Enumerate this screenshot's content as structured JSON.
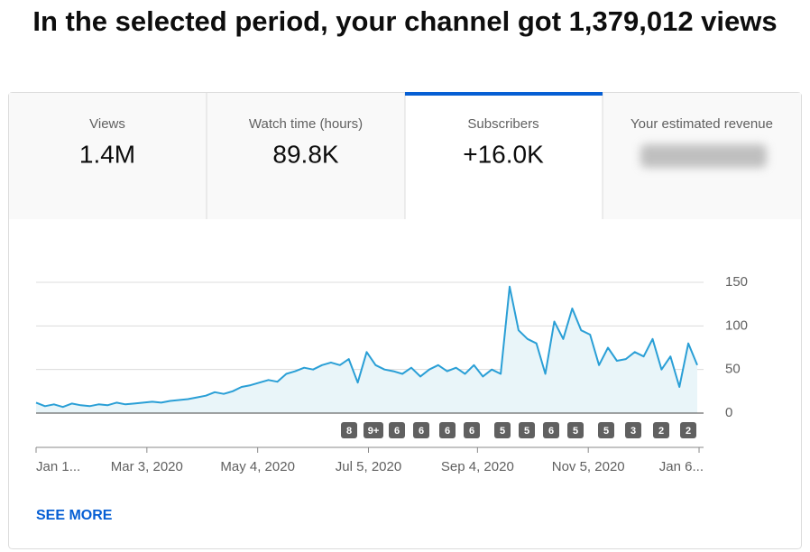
{
  "headline": "In the selected period, your channel got 1,379,012 views",
  "tabs": [
    {
      "label": "Views",
      "value": "1.4M"
    },
    {
      "label": "Watch time (hours)",
      "value": "89.8K"
    },
    {
      "label": "Subscribers",
      "value": "+16.0K"
    },
    {
      "label": "Your estimated revenue"
    }
  ],
  "chart_data": {
    "type": "line",
    "color": "#2a9fd6",
    "fill": "#e9f5f9",
    "grid": true,
    "x": [
      "2020-01-01",
      "2020-01-06",
      "2020-01-11",
      "2020-01-16",
      "2020-01-21",
      "2020-01-26",
      "2020-01-31",
      "2020-02-05",
      "2020-02-10",
      "2020-02-15",
      "2020-02-20",
      "2020-02-25",
      "2020-03-01",
      "2020-03-06",
      "2020-03-11",
      "2020-03-16",
      "2020-03-21",
      "2020-03-26",
      "2020-03-31",
      "2020-04-05",
      "2020-04-10",
      "2020-04-15",
      "2020-04-20",
      "2020-04-25",
      "2020-04-30",
      "2020-05-05",
      "2020-05-10",
      "2020-05-15",
      "2020-05-20",
      "2020-05-25",
      "2020-05-30",
      "2020-06-04",
      "2020-06-09",
      "2020-06-14",
      "2020-06-19",
      "2020-06-24",
      "2020-06-29",
      "2020-07-04",
      "2020-07-09",
      "2020-07-14",
      "2020-07-19",
      "2020-07-24",
      "2020-07-29",
      "2020-08-03",
      "2020-08-08",
      "2020-08-13",
      "2020-08-18",
      "2020-08-23",
      "2020-08-28",
      "2020-09-02",
      "2020-09-07",
      "2020-09-12",
      "2020-09-17",
      "2020-09-22",
      "2020-09-27",
      "2020-10-02",
      "2020-10-07",
      "2020-10-12",
      "2020-10-17",
      "2020-10-22",
      "2020-10-27",
      "2020-11-01",
      "2020-11-06",
      "2020-11-11",
      "2020-11-16",
      "2020-11-21",
      "2020-11-26",
      "2020-12-01",
      "2020-12-06",
      "2020-12-11",
      "2020-12-16",
      "2020-12-21",
      "2020-12-26",
      "2020-12-31",
      "2021-01-05"
    ],
    "values": [
      12,
      8,
      10,
      7,
      11,
      9,
      8,
      10,
      9,
      12,
      10,
      11,
      12,
      13,
      12,
      14,
      15,
      16,
      18,
      20,
      24,
      22,
      25,
      30,
      32,
      35,
      38,
      36,
      45,
      48,
      52,
      50,
      55,
      58,
      55,
      62,
      35,
      70,
      55,
      50,
      48,
      45,
      52,
      42,
      50,
      55,
      48,
      52,
      45,
      55,
      42,
      50,
      45,
      145,
      95,
      85,
      80,
      45,
      105,
      85,
      120,
      95,
      90,
      55,
      75,
      60,
      62,
      70,
      65,
      85,
      50,
      65,
      30,
      80,
      55
    ],
    "xlim": [
      "2020-01-01",
      "2021-01-07"
    ],
    "xticks": [
      {
        "value": "2020-01-01",
        "label": "Jan 1..."
      },
      {
        "value": "2020-03-03",
        "label": "Mar 3, 2020"
      },
      {
        "value": "2020-05-04",
        "label": "May 4, 2020"
      },
      {
        "value": "2020-07-05",
        "label": "Jul 5, 2020"
      },
      {
        "value": "2020-09-04",
        "label": "Sep 4, 2020"
      },
      {
        "value": "2020-11-05",
        "label": "Nov 5, 2020"
      },
      {
        "value": "2021-01-06",
        "label": "Jan 6..."
      }
    ],
    "ylim": [
      0,
      150
    ],
    "yticks": [
      0,
      50,
      100,
      150
    ],
    "annotations": [
      "8",
      "9+",
      "6",
      "6",
      "6",
      "6",
      "5",
      "5",
      "6",
      "5",
      "5",
      "3",
      "2",
      "2"
    ]
  },
  "see_more": "SEE MORE"
}
